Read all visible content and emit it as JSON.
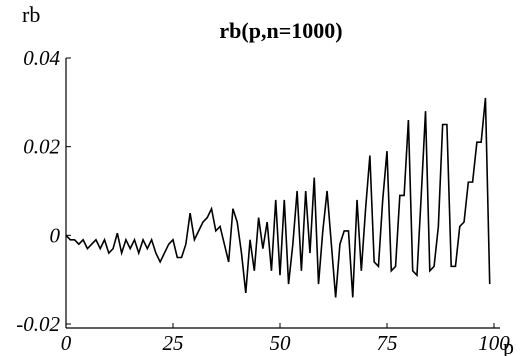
{
  "chart_data": {
    "type": "line",
    "title": "rb(p,n=1000)",
    "xlabel": "p",
    "ylabel": "rb",
    "xlim": [
      0,
      100
    ],
    "ylim": [
      -0.02,
      0.04
    ],
    "xticks": [
      0,
      25,
      50,
      75,
      100
    ],
    "yticks": [
      -0.02,
      0,
      0.02,
      0.04
    ],
    "xtick_labels": [
      "0",
      "25",
      "50",
      "75",
      "100"
    ],
    "ytick_labels": [
      "-0.02",
      "0",
      "0.02",
      "0.04"
    ],
    "grid": false,
    "series": [
      {
        "x": [
          0,
          1,
          2,
          3,
          4,
          5,
          6,
          7,
          8,
          9,
          10,
          11,
          12,
          13,
          14,
          15,
          16,
          17,
          18,
          19,
          20,
          21,
          22,
          23,
          24,
          25,
          26,
          27,
          28,
          29,
          30,
          31,
          32,
          33,
          34,
          35,
          36,
          37,
          38,
          39,
          40,
          41,
          42,
          43,
          44,
          45,
          46,
          47,
          48,
          49,
          50,
          51,
          52,
          53,
          54,
          55,
          56,
          57,
          58,
          59,
          60,
          61,
          62,
          63,
          64,
          65,
          66,
          67,
          68,
          69,
          70,
          71,
          72,
          73,
          74,
          75,
          76,
          77,
          78,
          79,
          80,
          81,
          82,
          83,
          84,
          85,
          86,
          87,
          88,
          89,
          90,
          91,
          92,
          93,
          94,
          95,
          96,
          97,
          98,
          99
        ],
        "y": [
          0,
          -0.001,
          -0.001,
          -0.002,
          -0.001,
          -0.003,
          -0.002,
          -0.001,
          -0.003,
          -0.001,
          -0.004,
          -0.003,
          0.0005,
          -0.004,
          -0.001,
          -0.003,
          -0.001,
          -0.004,
          -0.001,
          -0.003,
          -0.001,
          -0.004,
          -0.006,
          -0.004,
          -0.002,
          -0.001,
          -0.005,
          -0.005,
          -0.002,
          0.005,
          -0.001,
          0.001,
          0.003,
          0.004,
          0.006,
          0.001,
          0.002,
          -0.002,
          -0.006,
          0.006,
          0.003,
          -0.004,
          -0.013,
          -0.001,
          -0.008,
          0.004,
          -0.003,
          0.003,
          -0.008,
          0.008,
          -0.009,
          0.008,
          -0.011,
          -0.002,
          0.01,
          -0.008,
          0.01,
          -0.004,
          0.013,
          -0.011,
          0.001,
          0.01,
          -0.002,
          -0.014,
          -0.002,
          0.001,
          0.001,
          -0.014,
          0.008,
          -0.008,
          0.006,
          0.018,
          -0.006,
          -0.007,
          0.008,
          0.019,
          -0.008,
          -0.007,
          0.009,
          0.009,
          0.026,
          -0.008,
          -0.009,
          0.009,
          0.028,
          -0.008,
          -0.007,
          0.002,
          0.025,
          0.025,
          -0.007,
          -0.007,
          0.002,
          0.003,
          0.012,
          0.012,
          0.021,
          0.021,
          0.031,
          -0.011
        ]
      }
    ]
  }
}
